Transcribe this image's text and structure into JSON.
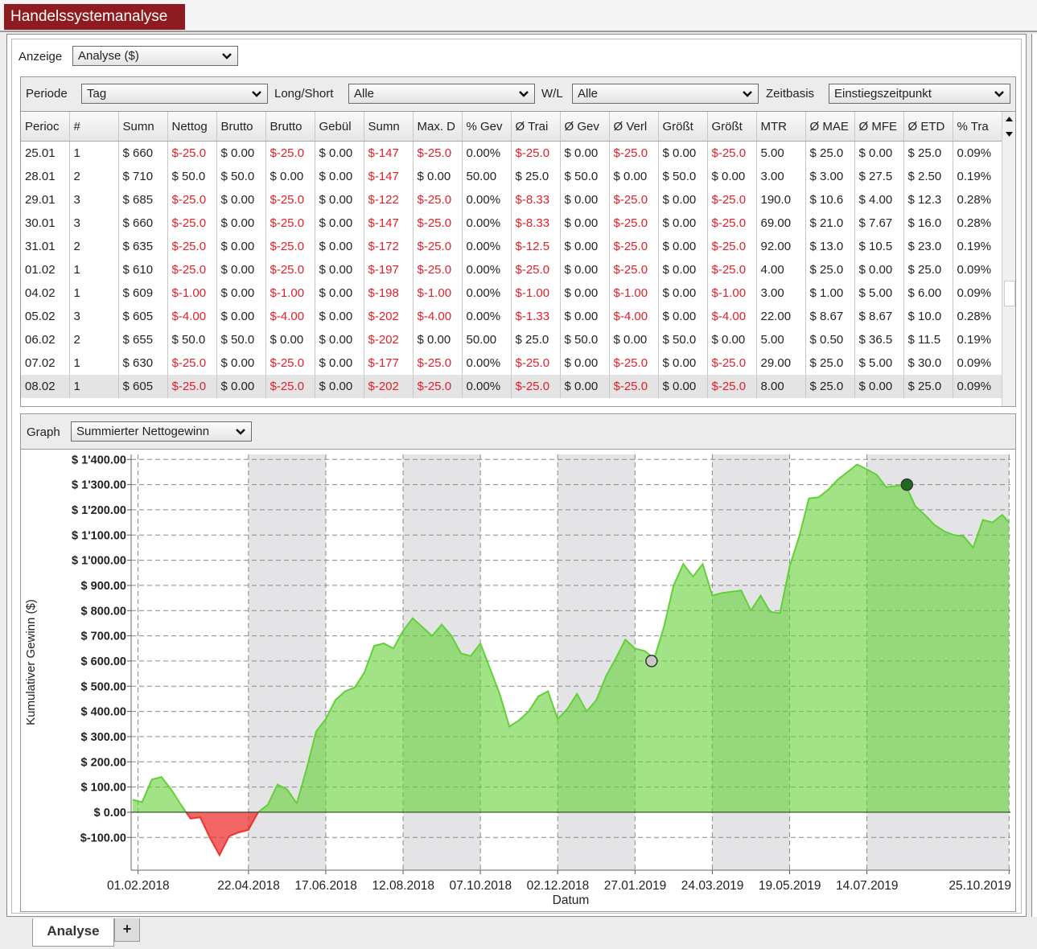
{
  "window_tab": "Handelssystemanalyse",
  "display": {
    "label": "Anzeige",
    "value": "Analyse ($)"
  },
  "filters": [
    {
      "label": "Periode",
      "value": "Tag"
    },
    {
      "label": "Long/Short",
      "value": "Alle"
    },
    {
      "label": "W/L",
      "value": "Alle"
    },
    {
      "label": "Zeitbasis",
      "value": "Einstiegszeitpunkt"
    }
  ],
  "table": {
    "headers": [
      "Perioc",
      "#",
      "Sumn",
      "Nettog",
      "Brutto",
      "Brutto",
      "Gebül",
      "Sumn",
      "Max. D",
      "% Gev",
      "Ø Trai",
      "Ø Gev",
      "Ø Verl",
      "Größt",
      "Größt",
      "MTR",
      "Ø MAE",
      "Ø MFE",
      "Ø ETD",
      "% Tra"
    ],
    "rows": [
      [
        "25.01",
        "1",
        "$ 660",
        "$-25.0",
        "$ 0.00",
        "$-25.0",
        "$ 0.00",
        "$-147",
        "$-25.0",
        "0.00%",
        "$-25.0",
        "$ 0.00",
        "$-25.0",
        "$ 0.00",
        "$-25.0",
        "5.00",
        "$ 25.0",
        "$ 0.00",
        "$ 25.0",
        "0.09%"
      ],
      [
        "28.01",
        "2",
        "$ 710",
        "$ 50.0",
        "$ 50.0",
        "$ 0.00",
        "$ 0.00",
        "$-147",
        "$ 0.00",
        "50.00",
        "$ 25.0",
        "$ 50.0",
        "$ 0.00",
        "$ 50.0",
        "$ 0.00",
        "3.00",
        "$ 3.00",
        "$ 27.5",
        "$ 2.50",
        "0.19%"
      ],
      [
        "29.01",
        "3",
        "$ 685",
        "$-25.0",
        "$ 0.00",
        "$-25.0",
        "$ 0.00",
        "$-122",
        "$-25.0",
        "0.00%",
        "$-8.33",
        "$ 0.00",
        "$-25.0",
        "$ 0.00",
        "$-25.0",
        "190.0",
        "$ 10.6",
        "$ 4.00",
        "$ 12.3",
        "0.28%"
      ],
      [
        "30.01",
        "3",
        "$ 660",
        "$-25.0",
        "$ 0.00",
        "$-25.0",
        "$ 0.00",
        "$-147",
        "$-25.0",
        "0.00%",
        "$-8.33",
        "$ 0.00",
        "$-25.0",
        "$ 0.00",
        "$-25.0",
        "69.00",
        "$ 21.0",
        "$ 7.67",
        "$ 16.0",
        "0.28%"
      ],
      [
        "31.01",
        "2",
        "$ 635",
        "$-25.0",
        "$ 0.00",
        "$-25.0",
        "$ 0.00",
        "$-172",
        "$-25.0",
        "0.00%",
        "$-12.5",
        "$ 0.00",
        "$-25.0",
        "$ 0.00",
        "$-25.0",
        "92.00",
        "$ 13.0",
        "$ 10.5",
        "$ 23.0",
        "0.19%"
      ],
      [
        "01.02",
        "1",
        "$ 610",
        "$-25.0",
        "$ 0.00",
        "$-25.0",
        "$ 0.00",
        "$-197",
        "$-25.0",
        "0.00%",
        "$-25.0",
        "$ 0.00",
        "$-25.0",
        "$ 0.00",
        "$-25.0",
        "4.00",
        "$ 25.0",
        "$ 0.00",
        "$ 25.0",
        "0.09%"
      ],
      [
        "04.02",
        "1",
        "$ 609",
        "$-1.00",
        "$ 0.00",
        "$-1.00",
        "$ 0.00",
        "$-198",
        "$-1.00",
        "0.00%",
        "$-1.00",
        "$ 0.00",
        "$-1.00",
        "$ 0.00",
        "$-1.00",
        "3.00",
        "$ 1.00",
        "$ 5.00",
        "$ 6.00",
        "0.09%"
      ],
      [
        "05.02",
        "3",
        "$ 605",
        "$-4.00",
        "$ 0.00",
        "$-4.00",
        "$ 0.00",
        "$-202",
        "$-4.00",
        "0.00%",
        "$-1.33",
        "$ 0.00",
        "$-4.00",
        "$ 0.00",
        "$-4.00",
        "22.00",
        "$ 8.67",
        "$ 8.67",
        "$ 10.0",
        "0.28%"
      ],
      [
        "06.02",
        "2",
        "$ 655",
        "$ 50.0",
        "$ 50.0",
        "$ 0.00",
        "$ 0.00",
        "$-202",
        "$ 0.00",
        "50.00",
        "$ 25.0",
        "$ 50.0",
        "$ 0.00",
        "$ 50.0",
        "$ 0.00",
        "5.00",
        "$ 0.50",
        "$ 36.5",
        "$ 11.5",
        "0.19%"
      ],
      [
        "07.02",
        "1",
        "$ 630",
        "$-25.0",
        "$ 0.00",
        "$-25.0",
        "$ 0.00",
        "$-177",
        "$-25.0",
        "0.00%",
        "$-25.0",
        "$ 0.00",
        "$-25.0",
        "$ 0.00",
        "$-25.0",
        "29.00",
        "$ 25.0",
        "$ 5.00",
        "$ 30.0",
        "0.09%"
      ],
      [
        "08.02",
        "1",
        "$ 605",
        "$-25.0",
        "$ 0.00",
        "$-25.0",
        "$ 0.00",
        "$-202",
        "$-25.0",
        "0.00%",
        "$-25.0",
        "$ 0.00",
        "$-25.0",
        "$ 0.00",
        "$-25.0",
        "8.00",
        "$ 25.0",
        "$ 0.00",
        "$ 25.0",
        "0.09%"
      ]
    ]
  },
  "graph": {
    "label": "Graph",
    "value": "Summierter Nettogewinn"
  },
  "chart_data": {
    "type": "area",
    "ylabel": "Kumulativer Gewinn ($)",
    "xlabel": "Datum",
    "x": [
      "2018-01-28",
      "2018-02-04",
      "2018-02-11",
      "2018-02-18",
      "2018-02-25",
      "2018-03-04",
      "2018-03-11",
      "2018-03-18",
      "2018-03-25",
      "2018-04-01",
      "2018-04-08",
      "2018-04-15",
      "2018-04-22",
      "2018-04-29",
      "2018-05-06",
      "2018-05-13",
      "2018-05-20",
      "2018-05-27",
      "2018-06-03",
      "2018-06-10",
      "2018-06-17",
      "2018-06-24",
      "2018-07-01",
      "2018-07-08",
      "2018-07-15",
      "2018-07-22",
      "2018-07-29",
      "2018-08-05",
      "2018-08-12",
      "2018-08-19",
      "2018-08-26",
      "2018-09-02",
      "2018-09-09",
      "2018-09-16",
      "2018-09-23",
      "2018-09-30",
      "2018-10-07",
      "2018-10-14",
      "2018-10-21",
      "2018-10-28",
      "2018-11-04",
      "2018-11-11",
      "2018-11-18",
      "2018-11-25",
      "2018-12-02",
      "2018-12-09",
      "2018-12-16",
      "2018-12-23",
      "2018-12-30",
      "2019-01-06",
      "2019-01-13",
      "2019-01-20",
      "2019-01-27",
      "2019-02-03",
      "2019-02-10",
      "2019-02-17",
      "2019-02-24",
      "2019-03-03",
      "2019-03-10",
      "2019-03-17",
      "2019-03-24",
      "2019-03-31",
      "2019-04-07",
      "2019-04-14",
      "2019-04-21",
      "2019-04-28",
      "2019-05-05",
      "2019-05-12",
      "2019-05-19",
      "2019-05-26",
      "2019-06-02",
      "2019-06-09",
      "2019-06-16",
      "2019-06-23",
      "2019-06-30",
      "2019-07-07",
      "2019-07-14",
      "2019-07-21",
      "2019-07-28",
      "2019-08-04",
      "2019-08-11",
      "2019-08-18",
      "2019-08-25",
      "2019-09-01",
      "2019-09-08",
      "2019-09-15",
      "2019-09-22",
      "2019-09-29",
      "2019-10-06",
      "2019-10-13",
      "2019-10-20",
      "2019-10-25"
    ],
    "values": [
      50,
      40,
      130,
      140,
      90,
      30,
      -25,
      -20,
      -100,
      -170,
      -95,
      -80,
      -70,
      0,
      30,
      110,
      90,
      35,
      170,
      320,
      370,
      445,
      480,
      495,
      555,
      660,
      670,
      650,
      720,
      770,
      735,
      700,
      745,
      700,
      630,
      620,
      670,
      570,
      470,
      340,
      365,
      400,
      460,
      480,
      370,
      410,
      470,
      400,
      445,
      540,
      610,
      685,
      650,
      640,
      610,
      735,
      900,
      985,
      935,
      985,
      860,
      870,
      875,
      880,
      800,
      860,
      795,
      790,
      975,
      1095,
      1245,
      1250,
      1280,
      1320,
      1350,
      1380,
      1360,
      1340,
      1290,
      1295,
      1300,
      1215,
      1180,
      1140,
      1115,
      1100,
      1095,
      1050,
      1160,
      1150,
      1180,
      1150
    ],
    "color": "#62d136",
    "negative_color": "#ee3333",
    "markers": [
      {
        "x": "2019-02-08",
        "value": 600,
        "color": "#c8c8c8"
      },
      {
        "x": "2019-08-12",
        "value": 1300,
        "color": "#1d6b1d"
      }
    ],
    "ylim": [
      -230,
      1420
    ],
    "yticks": [
      {
        "value": 1400,
        "label": "$ 1'400.00"
      },
      {
        "value": 1300,
        "label": "$ 1'300.00"
      },
      {
        "value": 1200,
        "label": "$ 1'200.00"
      },
      {
        "value": 1100,
        "label": "$ 1'100.00"
      },
      {
        "value": 1000,
        "label": "$ 1'000.00"
      },
      {
        "value": 900,
        "label": "$ 900.00"
      },
      {
        "value": 800,
        "label": "$ 800.00"
      },
      {
        "value": 700,
        "label": "$ 700.00"
      },
      {
        "value": 600,
        "label": "$ 600.00"
      },
      {
        "value": 500,
        "label": "$ 500.00"
      },
      {
        "value": 400,
        "label": "$ 400.00"
      },
      {
        "value": 300,
        "label": "$ 300.00"
      },
      {
        "value": 200,
        "label": "$ 200.00"
      },
      {
        "value": 100,
        "label": "$ 100.00"
      },
      {
        "value": 0,
        "label": "$ 0.00"
      },
      {
        "value": -100,
        "label": "$-100.00"
      }
    ],
    "xlim": [
      "2018-01-27",
      "2019-10-26"
    ],
    "xticks": [
      {
        "value": "2018-02-01",
        "label": "01.02.2018"
      },
      {
        "value": "2018-04-22",
        "label": "22.04.2018"
      },
      {
        "value": "2018-06-17",
        "label": "17.06.2018"
      },
      {
        "value": "2018-08-12",
        "label": "12.08.2018"
      },
      {
        "value": "2018-10-07",
        "label": "07.10.2018"
      },
      {
        "value": "2018-12-02",
        "label": "02.12.2018"
      },
      {
        "value": "2019-01-27",
        "label": "27.01.2019"
      },
      {
        "value": "2019-03-24",
        "label": "24.03.2019"
      },
      {
        "value": "2019-05-19",
        "label": "19.05.2019"
      },
      {
        "value": "2019-07-14",
        "label": "14.07.2019"
      },
      {
        "value": "2019-10-25",
        "label": "25.10.2019"
      }
    ],
    "grid": true
  },
  "bottom_tabs": [
    "Analyse",
    "+"
  ]
}
